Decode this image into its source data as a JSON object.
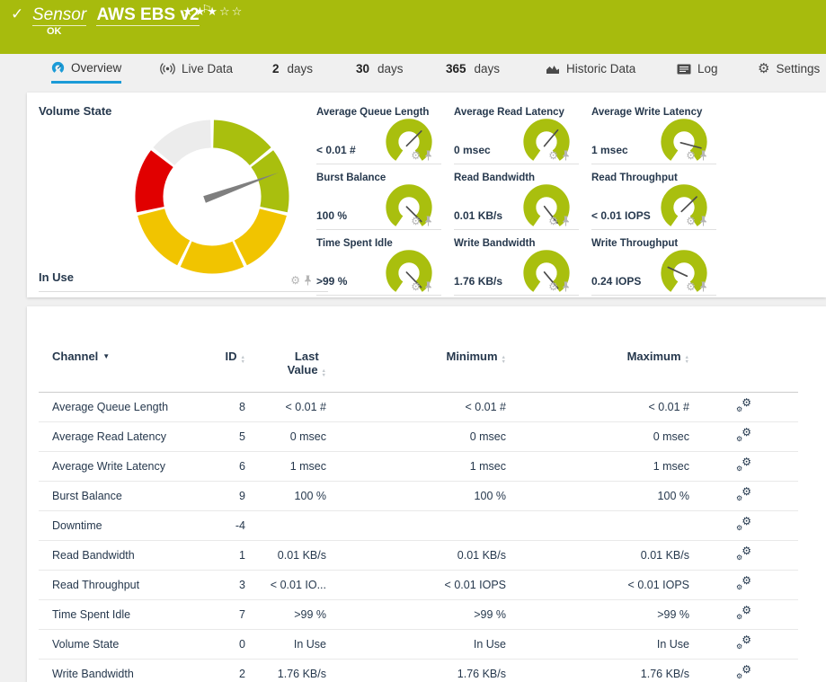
{
  "header": {
    "kind_label": "Sensor",
    "title": "AWS EBS v2",
    "status": "OK",
    "rating": {
      "filled": 3,
      "total": 5
    }
  },
  "tabs": [
    {
      "id": "overview",
      "label": "Overview",
      "icon": "gauge-icon",
      "active": true
    },
    {
      "id": "live-data",
      "label": "Live Data",
      "icon": "broadcast-icon",
      "active": false
    },
    {
      "id": "2-days",
      "num": "2",
      "label": "days",
      "active": false
    },
    {
      "id": "30-days",
      "num": "30",
      "label": "days",
      "active": false
    },
    {
      "id": "365-days",
      "num": "365",
      "label": "days",
      "active": false
    },
    {
      "id": "historic-data",
      "label": "Historic Data",
      "icon": "chart-icon",
      "active": false
    },
    {
      "id": "log",
      "label": "Log",
      "icon": "log-icon",
      "active": false
    },
    {
      "id": "settings",
      "label": "Settings",
      "icon": "gear-icon",
      "active": false
    }
  ],
  "colors": {
    "accent_blue": "#1b9bd7",
    "header_green": "#a7bb0d",
    "gauge_green": "#a9bf0e",
    "gauge_yellow": "#f1c400",
    "gauge_red": "#e10000",
    "gauge_neutral": "#ececec",
    "needle_gray": "#7f7f7f",
    "text_navy": "#26384d"
  },
  "chart_data": [
    {
      "type": "status-donut-gauge",
      "title": "Volume State",
      "value": "In Use",
      "needle_compass_deg": 70,
      "segments": [
        {
          "start": 0,
          "end": 51.4,
          "color_key": "gauge_green"
        },
        {
          "start": 51.4,
          "end": 102.9,
          "color_key": "gauge_green"
        },
        {
          "start": 102.9,
          "end": 154.3,
          "color_key": "gauge_yellow"
        },
        {
          "start": 154.3,
          "end": 205.7,
          "color_key": "gauge_yellow"
        },
        {
          "start": 205.7,
          "end": 257.1,
          "color_key": "gauge_yellow"
        },
        {
          "start": 257.1,
          "end": 308.6,
          "color_key": "gauge_red"
        },
        {
          "start": 308.6,
          "end": 360,
          "color_key": "gauge_neutral"
        }
      ]
    },
    {
      "type": "radial-gauge",
      "title": "Average Queue Length",
      "value": "< 0.01 #",
      "needle_deg": 45
    },
    {
      "type": "radial-gauge",
      "title": "Average Read Latency",
      "value": "0 msec",
      "needle_deg": 50
    },
    {
      "type": "radial-gauge",
      "title": "Average Write Latency",
      "value": "1 msec",
      "needle_deg": -15
    },
    {
      "type": "radial-gauge",
      "title": "Burst Balance",
      "value": "100 %",
      "needle_deg": -45
    },
    {
      "type": "radial-gauge",
      "title": "Read Bandwidth",
      "value": "0.01 KB/s",
      "needle_deg": -52
    },
    {
      "type": "radial-gauge",
      "title": "Read Throughput",
      "value": "< 0.01 IOPS",
      "needle_deg": 44
    },
    {
      "type": "radial-gauge",
      "title": "Time Spent Idle",
      "value": ">99 %",
      "needle_deg": -46
    },
    {
      "type": "radial-gauge",
      "title": "Write Bandwidth",
      "value": "1.76 KB/s",
      "needle_deg": -50
    },
    {
      "type": "radial-gauge",
      "title": "Write Throughput",
      "value": "0.24 IOPS",
      "needle_deg": 155
    }
  ],
  "table": {
    "columns": [
      "Channel",
      "ID",
      "Last\nValue",
      "Minimum",
      "Maximum"
    ],
    "sorted_by": "Channel",
    "rows": [
      {
        "channel": "Average Queue Length",
        "id": "8",
        "last": "< 0.01 #",
        "min": "< 0.01 #",
        "max": "< 0.01 #"
      },
      {
        "channel": "Average Read Latency",
        "id": "5",
        "last": "0 msec",
        "min": "0 msec",
        "max": "0 msec"
      },
      {
        "channel": "Average Write Latency",
        "id": "6",
        "last": "1 msec",
        "min": "1 msec",
        "max": "1 msec"
      },
      {
        "channel": "Burst Balance",
        "id": "9",
        "last": "100 %",
        "min": "100 %",
        "max": "100 %"
      },
      {
        "channel": "Downtime",
        "id": "-4",
        "last": "",
        "min": "",
        "max": ""
      },
      {
        "channel": "Read Bandwidth",
        "id": "1",
        "last": "0.01 KB/s",
        "min": "0.01 KB/s",
        "max": "0.01 KB/s"
      },
      {
        "channel": "Read Throughput",
        "id": "3",
        "last": "< 0.01 IO...",
        "min": "< 0.01 IOPS",
        "max": "< 0.01 IOPS"
      },
      {
        "channel": "Time Spent Idle",
        "id": "7",
        "last": ">99 %",
        "min": ">99 %",
        "max": ">99 %"
      },
      {
        "channel": "Volume State",
        "id": "0",
        "last": "In Use",
        "min": "In Use",
        "max": "In Use"
      },
      {
        "channel": "Write Bandwidth",
        "id": "2",
        "last": "1.76 KB/s",
        "min": "1.76 KB/s",
        "max": "1.76 KB/s"
      }
    ]
  }
}
